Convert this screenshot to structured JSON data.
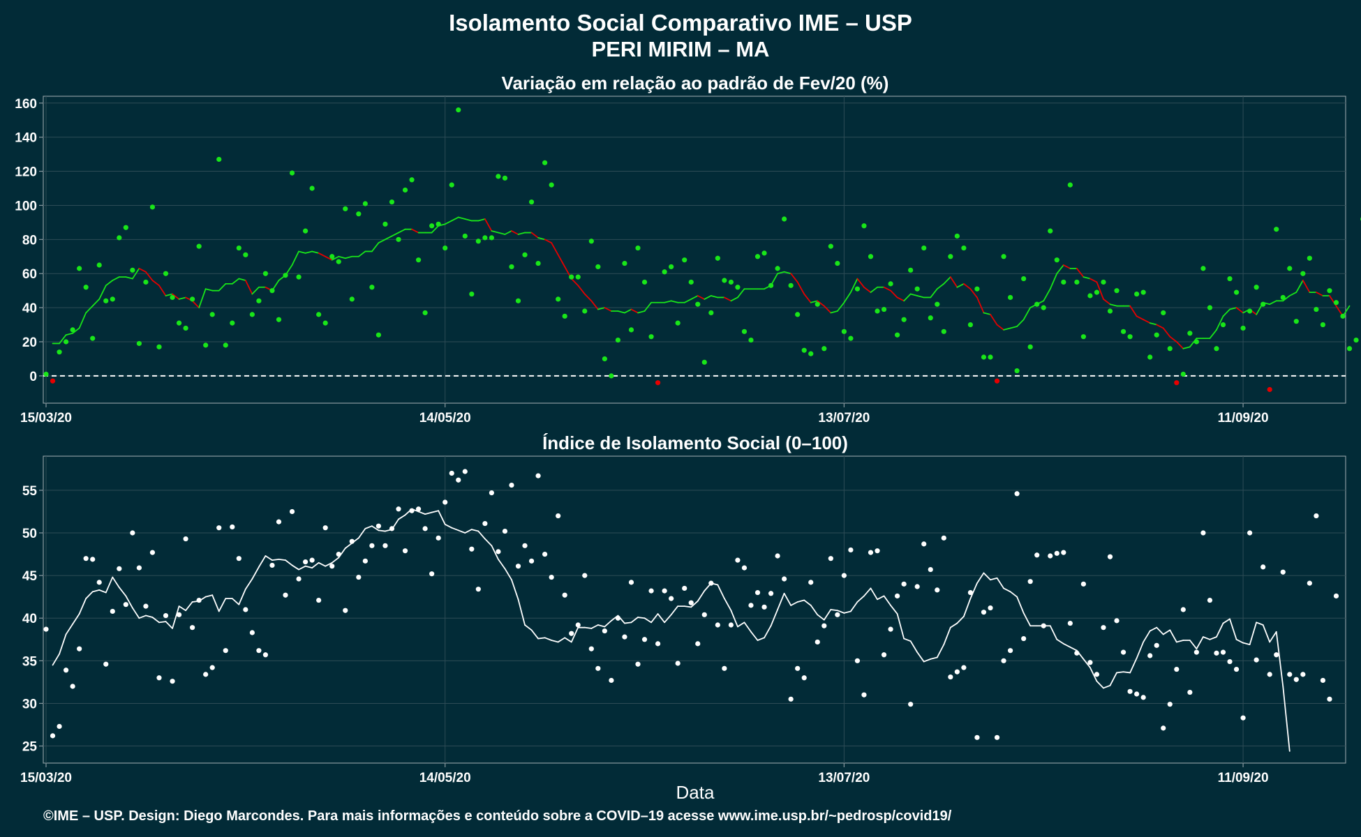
{
  "title": "Isolamento Social Comparativo IME – USP",
  "subtitle": "PERI MIRIM – MA",
  "footer": "©IME – USP. Design: Diego Marcondes. Para mais informações e conteúdo sobre a COVID–19 acesse www.ime.usp.br/~pedrosp/covid19/",
  "colors": {
    "background": "#022b37",
    "text": "#ffffff",
    "panel_border": "#8a9aa0",
    "grid": "#2e4c56",
    "top_series": "#19e619",
    "top_negative": "#e60000",
    "bottom_series": "#ffffff"
  },
  "chart_data": [
    {
      "type": "scatter",
      "title": "Variação em relação ao padrão de Fev/20 (%)",
      "xlabel": "",
      "ylabel": "",
      "x_start": "15/03/20",
      "x_end": "26/09/20",
      "x_ticks": [
        "15/03/20",
        "14/05/20",
        "13/07/20",
        "11/09/20"
      ],
      "y_ticks": [
        "0",
        "20",
        "40",
        "60",
        "80",
        "100",
        "120",
        "140",
        "160"
      ],
      "ylim": [
        -16,
        164
      ],
      "grid": true,
      "reference_line": 0,
      "series": [
        {
          "values": [
            1,
            -3,
            14,
            20,
            27,
            63,
            52,
            22,
            65,
            44,
            45,
            81,
            87,
            62,
            19,
            55,
            99,
            17,
            60,
            46,
            31,
            28,
            45,
            76,
            18,
            36,
            127,
            18,
            31,
            75,
            71,
            36,
            44,
            60,
            50,
            33,
            59,
            119,
            58,
            85,
            110,
            36,
            31,
            70,
            67,
            98,
            45,
            95,
            101,
            52,
            24,
            89,
            102,
            80,
            109,
            115,
            68,
            37,
            88,
            89,
            75,
            112,
            156,
            82,
            48,
            79,
            81,
            81,
            117,
            116,
            64,
            44,
            71,
            102,
            66,
            125,
            112,
            45,
            35,
            58,
            58,
            38,
            79,
            64,
            10,
            0,
            21,
            66,
            27,
            75,
            55,
            23,
            -4,
            61,
            64,
            31,
            68,
            55,
            42,
            8,
            37,
            69,
            56,
            55,
            52,
            26,
            21,
            70,
            72,
            53,
            63,
            92,
            53,
            36,
            15,
            13,
            42,
            16,
            76,
            66,
            26,
            22,
            51,
            88,
            70,
            38,
            39,
            54,
            24,
            33,
            62,
            51,
            75,
            34,
            42,
            26,
            70,
            82,
            75,
            30,
            51,
            11,
            11,
            -3,
            70,
            46,
            3,
            57,
            17,
            42,
            40,
            85,
            68,
            55,
            112,
            55,
            23,
            47,
            49,
            55,
            38,
            50,
            26,
            23,
            48,
            49,
            11,
            24,
            37,
            16,
            -4,
            1,
            25,
            20,
            63,
            40,
            16,
            30,
            57,
            49,
            28,
            38,
            52,
            42,
            -8,
            86,
            46,
            63,
            32,
            60,
            69,
            39,
            30,
            50,
            43,
            35,
            16,
            21,
            92
          ]
        },
        {
          "values": [
            19,
            19,
            24,
            25,
            28,
            37,
            41,
            45,
            53,
            56,
            58,
            58,
            57,
            63,
            61,
            56,
            53,
            47,
            48,
            45,
            46,
            44,
            40,
            51,
            50,
            50,
            54,
            54,
            57,
            56,
            48,
            52,
            52,
            50,
            56,
            59,
            65,
            73,
            72,
            73,
            72,
            70,
            68,
            70,
            69,
            70,
            70,
            73,
            73,
            78,
            80,
            82,
            84,
            86,
            86,
            84,
            84,
            84,
            88,
            89,
            91,
            93,
            92,
            91,
            91,
            92,
            85,
            84,
            83,
            85,
            83,
            84,
            84,
            81,
            80,
            78,
            71,
            64,
            57,
            53,
            48,
            44,
            39,
            40,
            38,
            38,
            37,
            39,
            37,
            38,
            43,
            43,
            43,
            44,
            43,
            43,
            45,
            47,
            45,
            47,
            46,
            46,
            44,
            46,
            51,
            51,
            51,
            51,
            53,
            60,
            61,
            60,
            55,
            48,
            43,
            44,
            41,
            37,
            38,
            43,
            49,
            57,
            52,
            49,
            52,
            52,
            50,
            46,
            44,
            48,
            47,
            46,
            46,
            51,
            54,
            58,
            52,
            54,
            51,
            46,
            37,
            36,
            30,
            27,
            28,
            29,
            33,
            40,
            42,
            44,
            51,
            60,
            65,
            63,
            63,
            58,
            57,
            55,
            45,
            42,
            41,
            41,
            41,
            35,
            33,
            31,
            30,
            28,
            23,
            20,
            16,
            17,
            22,
            22,
            22,
            27,
            35,
            39,
            40,
            37,
            39,
            36,
            43,
            42,
            44,
            44,
            47,
            49,
            56,
            49,
            49,
            47,
            47,
            41,
            35,
            41
          ]
        }
      ]
    },
    {
      "type": "scatter",
      "title": "Índice de Isolamento Social (0–100)",
      "xlabel": "Data",
      "ylabel": "",
      "x_start": "15/03/20",
      "x_end": "26/09/20",
      "x_ticks": [
        "15/03/20",
        "14/05/20",
        "13/07/20",
        "11/09/20"
      ],
      "y_ticks": [
        "25",
        "30",
        "35",
        "40",
        "45",
        "50",
        "55"
      ],
      "ylim": [
        23,
        59
      ],
      "grid": true,
      "series": [
        {
          "values": [
            38.7,
            26.2,
            27.3,
            33.9,
            32.0,
            36.4,
            47.0,
            46.9,
            44.2,
            34.6,
            40.8,
            45.8,
            41.6,
            50.0,
            45.9,
            41.4,
            47.7,
            33.0,
            40.3,
            32.6,
            40.4,
            49.3,
            38.9,
            42.1,
            33.4,
            34.2,
            50.6,
            36.2,
            50.7,
            47.0,
            41.0,
            38.3,
            36.2,
            35.7,
            46.2,
            51.3,
            42.7,
            52.5,
            44.6,
            46.6,
            46.8,
            42.1,
            50.6,
            46.1,
            47.5,
            40.9,
            49.0,
            44.8,
            46.7,
            48.5,
            50.8,
            48.5,
            50.5,
            52.8,
            47.9,
            52.6,
            52.8,
            50.5,
            45.2,
            49.4,
            53.6,
            57.0,
            56.2,
            57.2,
            48.1,
            43.4,
            51.1,
            54.7,
            47.8,
            50.2,
            55.6,
            46.1,
            48.5,
            46.7,
            56.7,
            47.5,
            44.8,
            52.0,
            42.7,
            38.2,
            39.2,
            45.0,
            36.4,
            34.1,
            38.5,
            32.7,
            40.0,
            37.8,
            44.2,
            34.6,
            37.5,
            43.2,
            37.0,
            43.2,
            42.3,
            34.7,
            43.5,
            41.8,
            37.0,
            40.4,
            44.1,
            39.2,
            34.1,
            39.2,
            46.8,
            45.9,
            41.5,
            43.0,
            41.3,
            42.9,
            47.3,
            44.6,
            30.5,
            34.1,
            33.0,
            44.2,
            37.2,
            39.1,
            47.0,
            40.4,
            45.0,
            48.0,
            35.0,
            31.0,
            47.7,
            47.9,
            35.7,
            38.7,
            42.6,
            44.0,
            29.9,
            43.7,
            48.7,
            45.7,
            43.3,
            49.4,
            33.1,
            33.7,
            34.2,
            43.0,
            26.0,
            40.7,
            41.2,
            26.0,
            35.0,
            36.2,
            54.6,
            37.6,
            44.3,
            47.4,
            39.1,
            47.3,
            47.6,
            47.7,
            39.4,
            35.9,
            44.0,
            34.8,
            33.4,
            38.9,
            47.2,
            39.7,
            36.0,
            31.4,
            31.1,
            30.7,
            35.6,
            36.8,
            27.1,
            29.9,
            34.0,
            41.0,
            31.3,
            36.0,
            50.0,
            42.1,
            35.9,
            36.0,
            34.9,
            34.0,
            28.3,
            50.0,
            35.1,
            46.0,
            33.4,
            35.7,
            45.4,
            33.4,
            32.8,
            33.4,
            44.1,
            52.0,
            32.7,
            30.5,
            42.6
          ]
        },
        {
          "values": [
            34.5,
            35.8,
            38.1,
            39.3,
            40.5,
            42.3,
            43.1,
            43.3,
            43.0,
            44.8,
            43.6,
            42.6,
            41.2,
            40.0,
            40.3,
            40.1,
            39.5,
            39.6,
            38.8,
            41.4,
            40.9,
            41.9,
            42.0,
            42.5,
            42.7,
            40.8,
            42.3,
            42.3,
            41.6,
            43.4,
            44.6,
            46.0,
            47.3,
            46.8,
            46.9,
            46.8,
            46.2,
            45.7,
            46.1,
            45.9,
            46.5,
            46.1,
            46.5,
            47.1,
            48.2,
            48.8,
            49.4,
            50.5,
            50.8,
            50.3,
            50.2,
            50.4,
            51.6,
            52.1,
            52.8,
            52.5,
            52.2,
            52.4,
            52.6,
            51.0,
            50.6,
            50.3,
            50.0,
            50.4,
            50.2,
            49.3,
            48.5,
            46.9,
            45.8,
            44.5,
            42.2,
            39.2,
            38.6,
            37.6,
            37.7,
            37.4,
            37.2,
            37.7,
            37.2,
            38.9,
            38.9,
            38.8,
            39.2,
            39.0,
            39.7,
            40.3,
            39.4,
            39.5,
            40.1,
            40.0,
            39.5,
            40.5,
            39.5,
            40.4,
            41.4,
            41.4,
            41.3,
            42.0,
            43.2,
            44.1,
            43.9,
            42.3,
            40.9,
            39.0,
            39.5,
            38.4,
            37.4,
            37.7,
            39.1,
            41.0,
            42.9,
            41.5,
            41.9,
            42.1,
            41.5,
            40.4,
            39.8,
            41.0,
            40.9,
            40.6,
            40.8,
            41.9,
            42.6,
            43.5,
            42.2,
            42.6,
            41.5,
            40.5,
            37.6,
            37.3,
            36.0,
            34.9,
            35.2,
            35.4,
            36.9,
            38.9,
            39.4,
            40.2,
            42.3,
            44.1,
            45.3,
            44.5,
            44.7,
            43.5,
            43.1,
            42.5,
            40.6,
            39.1,
            39.1,
            39.1,
            39.1,
            37.5,
            37.0,
            36.6,
            36.2,
            35.2,
            34.2,
            32.6,
            31.8,
            32.1,
            33.6,
            33.7,
            33.6,
            35.3,
            37.2,
            38.5,
            38.9,
            38.1,
            38.6,
            37.2,
            37.4,
            37.4,
            36.4,
            37.8,
            37.5,
            37.8,
            39.4,
            39.9,
            37.5,
            37.1,
            36.9,
            39.5,
            39.2,
            37.2,
            38.4,
            32.0,
            24.4
          ]
        }
      ]
    }
  ]
}
